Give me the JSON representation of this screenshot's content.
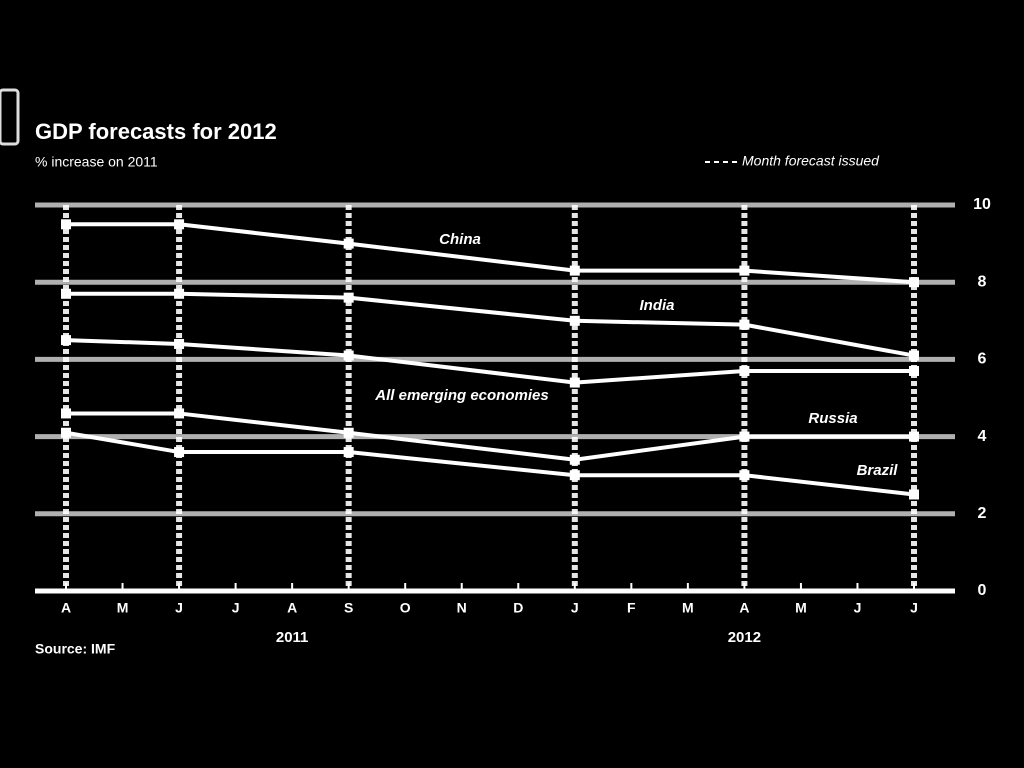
{
  "chart_data": {
    "type": "line",
    "title": "GDP forecasts for 2012",
    "subtitle": "% increase on 2011",
    "legend": "Month forecast issued",
    "source": "Source: IMF",
    "categories": [
      "A",
      "M",
      "J",
      "J",
      "A",
      "S",
      "O",
      "N",
      "D",
      "J",
      "F",
      "M",
      "A",
      "M",
      "J",
      "J"
    ],
    "years": [
      "2011",
      "2012"
    ],
    "ylim": [
      0,
      10
    ],
    "yticks": [
      0,
      2,
      4,
      6,
      8,
      10
    ],
    "grid": true,
    "series": [
      {
        "name": "China",
        "color": "#ffffff",
        "values": [
          9.5,
          null,
          9.5,
          null,
          null,
          9.0,
          null,
          null,
          null,
          8.3,
          null,
          null,
          8.3,
          null,
          null,
          8.0
        ]
      },
      {
        "name": "India",
        "color": "#ffffff",
        "values": [
          7.7,
          null,
          7.7,
          null,
          null,
          7.6,
          null,
          null,
          null,
          7.0,
          null,
          null,
          6.9,
          null,
          null,
          6.1
        ]
      },
      {
        "name": "All emerging economies",
        "color": "#ffffff",
        "values": [
          6.5,
          null,
          6.4,
          null,
          null,
          6.1,
          null,
          null,
          null,
          5.4,
          null,
          null,
          5.7,
          null,
          null,
          5.7
        ]
      },
      {
        "name": "Russia",
        "color": "#ffffff",
        "values": [
          4.6,
          null,
          4.6,
          null,
          null,
          4.1,
          null,
          null,
          null,
          3.4,
          null,
          null,
          4.0,
          null,
          null,
          4.0
        ]
      },
      {
        "name": "Brazil",
        "color": "#ffffff",
        "values": [
          4.1,
          null,
          3.6,
          null,
          null,
          3.6,
          null,
          null,
          null,
          3.0,
          null,
          null,
          3.0,
          null,
          null,
          2.5
        ]
      }
    ]
  }
}
